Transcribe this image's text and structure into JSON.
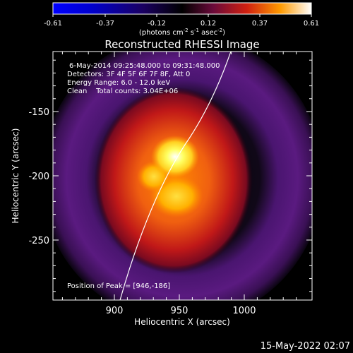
{
  "colorbar": {
    "ticks": [
      "-0.61",
      "-0.37",
      "-0.12",
      "0.12",
      "0.37",
      "0.61"
    ],
    "units_prefix": "(photons cm",
    "units_exp1": "-2",
    "units_mid": " s",
    "units_exp2": "-1",
    "units_mid2": " asec",
    "units_exp3": "-2",
    "units_suffix": ")"
  },
  "title": "Reconstructed RHESSI Image",
  "info": {
    "time": "6-May-2014 09:25:48.000 to 09:31:48.000",
    "detectors": "Detectors: 3F 4F 5F 6F 7F 8F, Att 0",
    "energy": "Energy Range: 6.0 - 12.0 keV",
    "clean": "Clean    Total counts: 3.04E+06",
    "peak": "Position of Peak = [946,-186]"
  },
  "axes": {
    "xlabel": "Heliocentric X (arcsec)",
    "ylabel": "Heliocentric Y (arcsec)",
    "xticks": [
      "900",
      "950",
      "1000"
    ],
    "yticks": [
      "-150",
      "-200",
      "-250"
    ]
  },
  "footer_date": "15-May-2022 02:07",
  "colors": {
    "map_dark": "#000000",
    "map_purple": "#4a1570",
    "map_red": "#c01010",
    "map_orange": "#ff8800",
    "map_yellow": "#ffff30"
  }
}
